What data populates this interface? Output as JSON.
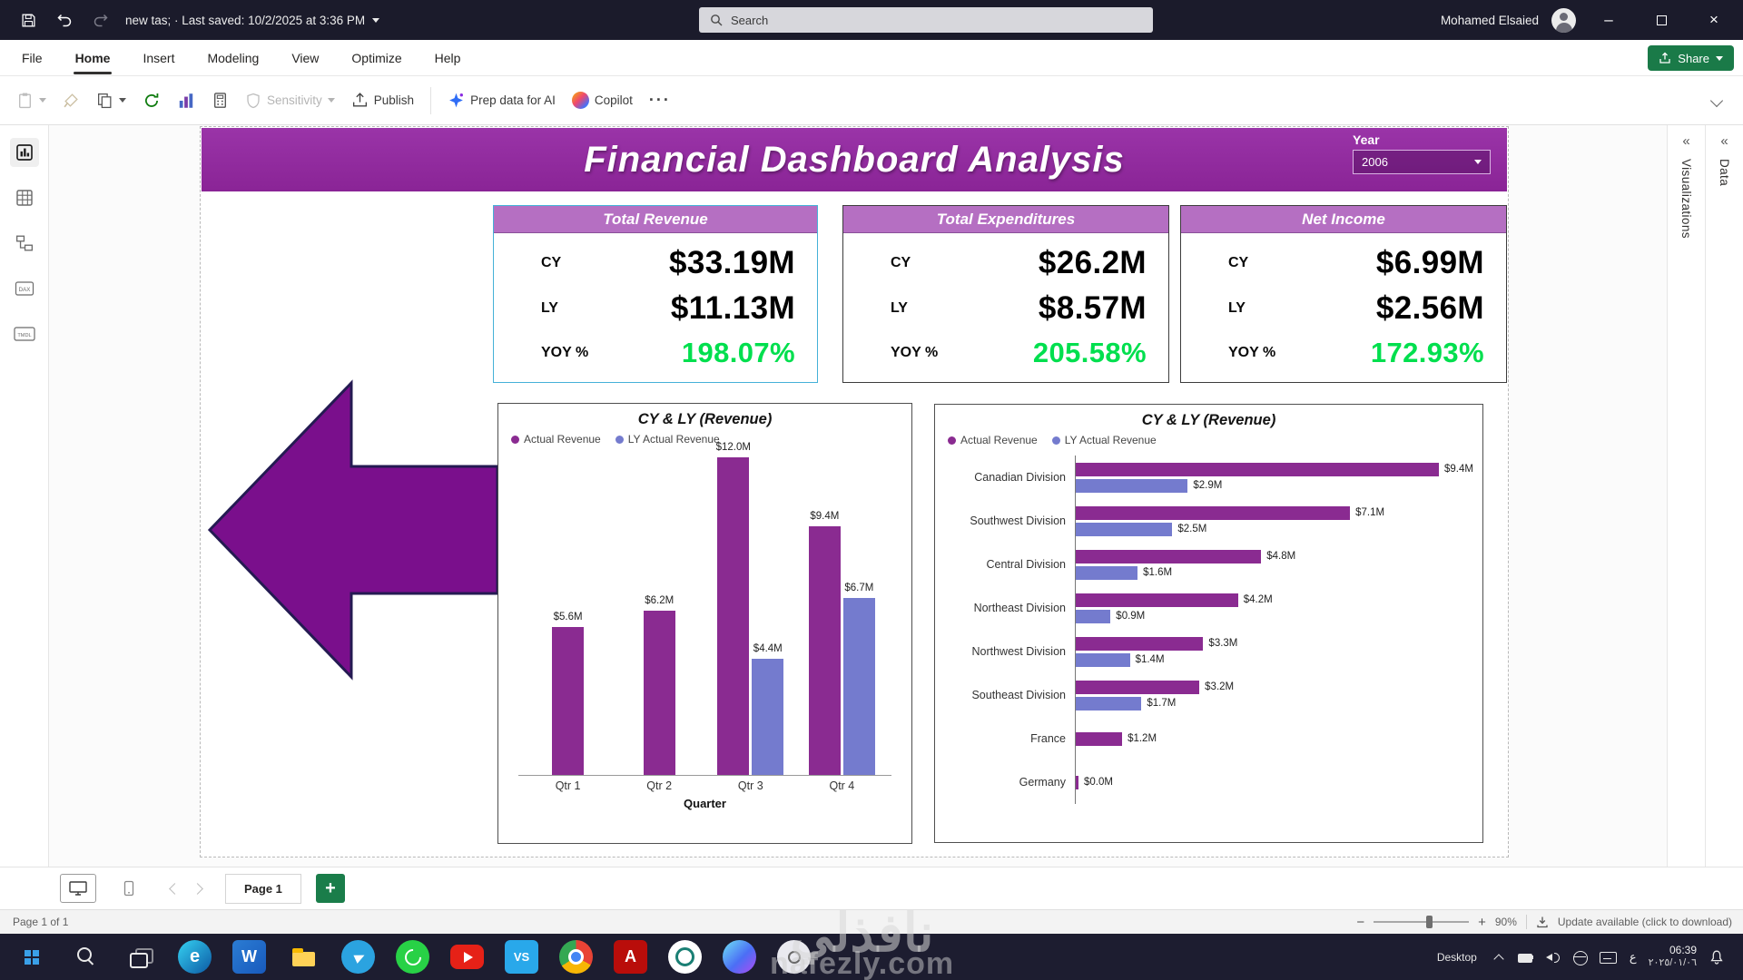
{
  "titlebar": {
    "doc_title": "new tas;  ·  Last saved: 10/2/2025 at 3:36 PM",
    "search_placeholder": "Search",
    "user_name": "Mohamed Elsaied"
  },
  "menubar": {
    "items": [
      "File",
      "Home",
      "Insert",
      "Modeling",
      "View",
      "Optimize",
      "Help"
    ],
    "share_label": "Share"
  },
  "ribbon": {
    "sensitivity_label": "Sensitivity",
    "publish_label": "Publish",
    "prep_ai_label": "Prep data for AI",
    "copilot_label": "Copilot",
    "more_label": "···"
  },
  "rails": {
    "visualizations_label": "Visualizations",
    "data_label": "Data",
    "collapse_glyph": "«"
  },
  "dashboard": {
    "title": "Financial Dashboard Analysis",
    "year_label": "Year",
    "year_value": "2006",
    "kpis": [
      {
        "title": "Total Revenue",
        "cy_label": "CY",
        "cy_value": "$33.19M",
        "ly_label": "LY",
        "ly_value": "$11.13M",
        "yoy_label": "YOY %",
        "yoy_value": "198.07%"
      },
      {
        "title": "Total Expenditures",
        "cy_label": "CY",
        "cy_value": "$26.2M",
        "ly_label": "LY",
        "ly_value": "$8.57M",
        "yoy_label": "YOY %",
        "yoy_value": "205.58%"
      },
      {
        "title": "Net Income",
        "cy_label": "CY",
        "cy_value": "$6.99M",
        "ly_label": "LY",
        "ly_value": "$2.56M",
        "yoy_label": "YOY %",
        "yoy_value": "172.93%"
      }
    ]
  },
  "chart_data": [
    {
      "type": "bar",
      "title": "CY & LY (Revenue)",
      "xlabel": "Quarter",
      "ylabel": "",
      "ylim": [
        0,
        12
      ],
      "grid": false,
      "legend_position": "top-left",
      "categories": [
        "Qtr 1",
        "Qtr 2",
        "Qtr 3",
        "Qtr 4"
      ],
      "series": [
        {
          "name": "Actual Revenue",
          "color": "#8a2b91",
          "values": [
            5.6,
            6.2,
            12.0,
            9.4
          ],
          "labels": [
            "$5.6M",
            "$6.2M",
            "$12.0M",
            "$9.4M"
          ]
        },
        {
          "name": "LY Actual Revenue",
          "color": "#747bce",
          "values": [
            null,
            null,
            4.4,
            6.7
          ],
          "labels": [
            null,
            null,
            "$4.4M",
            "$6.7M"
          ]
        }
      ]
    },
    {
      "type": "bar",
      "orientation": "horizontal",
      "title": "CY & LY (Revenue)",
      "xlabel": "",
      "xlim": [
        0,
        9.4
      ],
      "grid": false,
      "legend_position": "top-left",
      "categories": [
        "Canadian Division",
        "Southwest Division",
        "Central Division",
        "Northeast Division",
        "Northwest Division",
        "Southeast Division",
        "France",
        "Germany"
      ],
      "series": [
        {
          "name": "Actual Revenue",
          "color": "#8a2b91",
          "values": [
            9.4,
            7.1,
            4.8,
            4.2,
            3.3,
            3.2,
            1.2,
            0.0
          ],
          "labels": [
            "$9.4M",
            "$7.1M",
            "$4.8M",
            "$4.2M",
            "$3.3M",
            "$3.2M",
            "$1.2M",
            "$0.0M"
          ]
        },
        {
          "name": "LY Actual Revenue",
          "color": "#747bce",
          "values": [
            2.9,
            2.5,
            1.6,
            0.9,
            1.4,
            1.7,
            null,
            null
          ],
          "labels": [
            "$2.9M",
            "$2.5M",
            "$1.6M",
            "$0.9M",
            "$1.4M",
            "$1.7M",
            null,
            null
          ]
        }
      ]
    }
  ],
  "pagebar": {
    "page_tab_label": "Page 1"
  },
  "statusbar": {
    "left_text": "Page 1 of 1",
    "zoom_value": "90%",
    "update_text": "Update available (click to download)"
  },
  "taskbar": {
    "app_icons": [
      "start",
      "search-win",
      "task-view",
      "edge",
      "word",
      "file-explorer",
      "telegram",
      "whatsapp",
      "youtube",
      "vscode",
      "chrome",
      "acrobat",
      "chatgpt",
      "copilot",
      "app-light"
    ],
    "desktop_label": "Desktop",
    "tray_icons": [
      "chevron-up",
      "battery",
      "volume",
      "network",
      "keyboard"
    ],
    "language": "ع",
    "time": "06:39",
    "date": "٢٠٢٥/٠١/٠٦"
  },
  "watermark": {
    "text_ar": "نافذلي",
    "text_en": "nafezly.com"
  },
  "colors": {
    "accent_purple": "#8e2d9c",
    "kpi_header_purple": "#b56fc2",
    "actual_series": "#8a2b91",
    "ly_series": "#747bce",
    "positive_green": "#00df4e",
    "share_green": "#1a7a48"
  }
}
